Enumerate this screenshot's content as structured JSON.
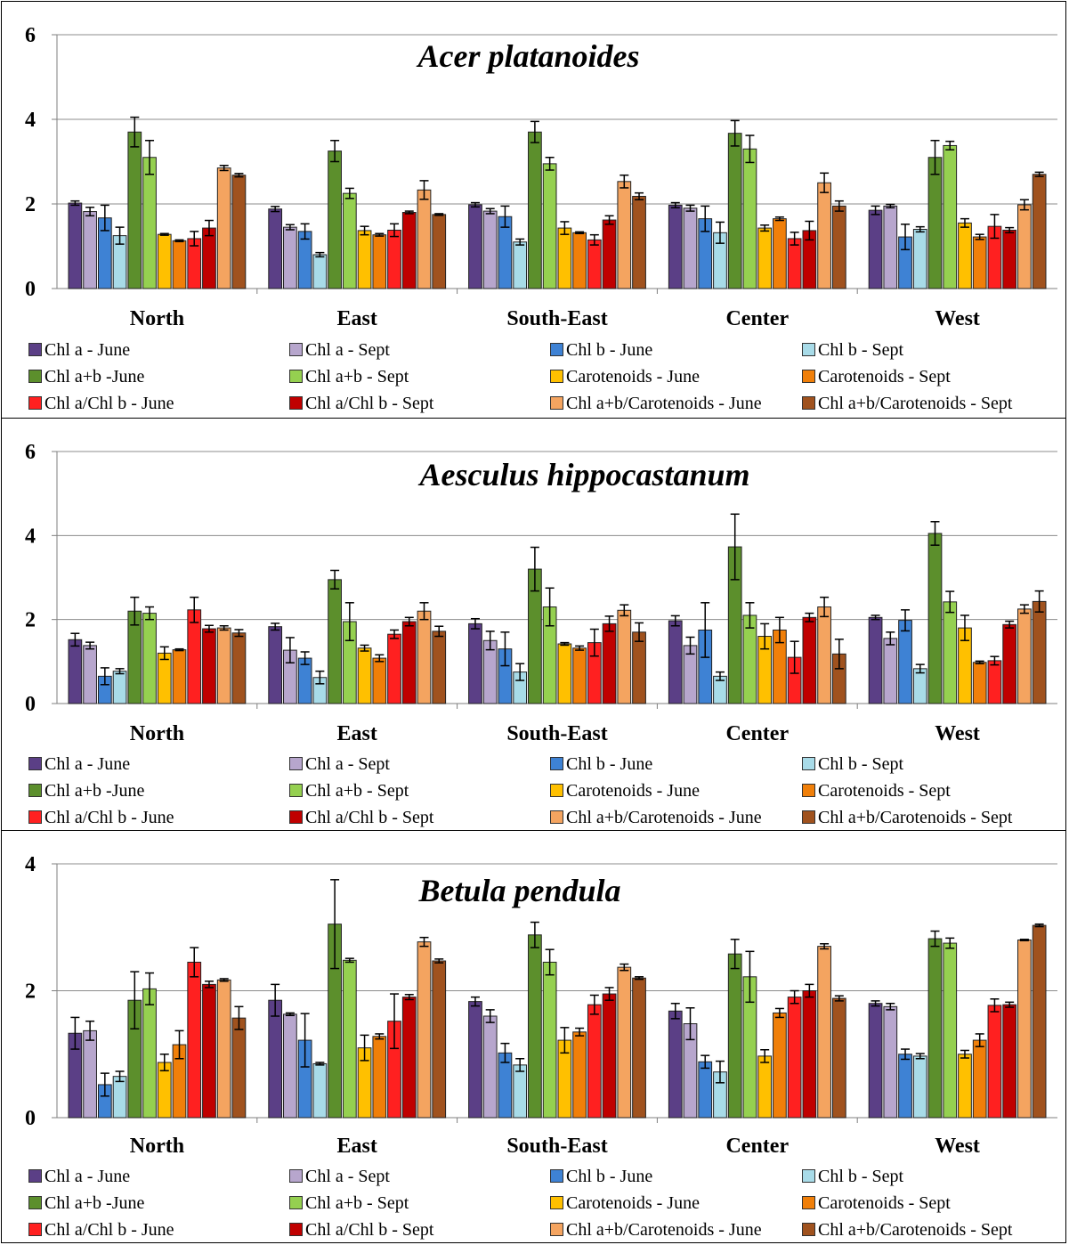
{
  "chart_data": [
    {
      "type": "bar",
      "title": "Acer platanoides",
      "categories": [
        "North",
        "East",
        "South-East",
        "Center",
        "West"
      ],
      "ylim": [
        0,
        6
      ],
      "yticks": [
        0,
        2,
        4,
        6
      ],
      "series": [
        {
          "name": "Chl a - June",
          "color": "#5b3f86",
          "values": [
            2.02,
            1.88,
            1.98,
            1.97,
            1.85
          ],
          "errors": [
            0.05,
            0.06,
            0.05,
            0.06,
            0.1
          ]
        },
        {
          "name": "Chl a - Sept",
          "color": "#b7a6cd",
          "values": [
            1.82,
            1.45,
            1.83,
            1.9,
            1.95
          ],
          "errors": [
            0.1,
            0.06,
            0.06,
            0.07,
            0.04
          ]
        },
        {
          "name": "Chl b - June",
          "color": "#3e82d4",
          "values": [
            1.67,
            1.35,
            1.7,
            1.65,
            1.22
          ],
          "errors": [
            0.3,
            0.18,
            0.25,
            0.3,
            0.3
          ]
        },
        {
          "name": "Chl b - Sept",
          "color": "#a8dbe8",
          "values": [
            1.25,
            0.8,
            1.1,
            1.32,
            1.4
          ],
          "errors": [
            0.2,
            0.05,
            0.07,
            0.25,
            0.06
          ]
        },
        {
          "name": "Chl a+b -June",
          "color": "#5c8f2c",
          "values": [
            3.7,
            3.25,
            3.7,
            3.67,
            3.1
          ],
          "errors": [
            0.35,
            0.25,
            0.25,
            0.3,
            0.4
          ]
        },
        {
          "name": "Chl a+b - Sept",
          "color": "#95d050",
          "values": [
            3.1,
            2.25,
            2.95,
            3.3,
            3.38
          ],
          "errors": [
            0.4,
            0.12,
            0.15,
            0.32,
            0.1
          ]
        },
        {
          "name": "Carotenoids - June",
          "color": "#ffc000",
          "values": [
            1.28,
            1.37,
            1.43,
            1.43,
            1.55
          ],
          "errors": [
            0.02,
            0.1,
            0.15,
            0.07,
            0.1
          ]
        },
        {
          "name": "Carotenoids - Sept",
          "color": "#f07f09",
          "values": [
            1.13,
            1.27,
            1.32,
            1.65,
            1.22
          ],
          "errors": [
            0.02,
            0.03,
            0.02,
            0.04,
            0.06
          ]
        },
        {
          "name": "Chl a/Chl b - June",
          "color": "#ff2020",
          "values": [
            1.18,
            1.38,
            1.15,
            1.18,
            1.47
          ],
          "errors": [
            0.17,
            0.15,
            0.12,
            0.15,
            0.28
          ]
        },
        {
          "name": "Chl a/Chl b - Sept",
          "color": "#c00000",
          "values": [
            1.43,
            1.8,
            1.62,
            1.37,
            1.38
          ],
          "errors": [
            0.18,
            0.03,
            0.1,
            0.22,
            0.06
          ]
        },
        {
          "name": "Chl a+b/Carotenoids - June",
          "color": "#f4a460",
          "values": [
            2.85,
            2.33,
            2.53,
            2.5,
            1.98
          ],
          "errors": [
            0.06,
            0.22,
            0.15,
            0.23,
            0.12
          ]
        },
        {
          "name": "Chl a+b/Carotenoids - Sept",
          "color": "#a0521e",
          "values": [
            2.68,
            1.75,
            2.18,
            1.95,
            2.7
          ],
          "errors": [
            0.04,
            0.02,
            0.08,
            0.12,
            0.05
          ]
        }
      ]
    },
    {
      "type": "bar",
      "title": "Aesculus hippocastanum",
      "categories": [
        "North",
        "East",
        "South-East",
        "Center",
        "West"
      ],
      "ylim": [
        0,
        6
      ],
      "yticks": [
        0,
        2,
        4,
        6
      ],
      "series": [
        {
          "name": "Chl a - June",
          "color": "#5b3f86",
          "values": [
            1.52,
            1.83,
            1.9,
            1.97,
            2.05
          ],
          "errors": [
            0.15,
            0.08,
            0.12,
            0.12,
            0.05
          ]
        },
        {
          "name": "Chl a - Sept",
          "color": "#b7a6cd",
          "values": [
            1.38,
            1.27,
            1.5,
            1.38,
            1.55
          ],
          "errors": [
            0.08,
            0.3,
            0.22,
            0.2,
            0.15
          ]
        },
        {
          "name": "Chl b - June",
          "color": "#3e82d4",
          "values": [
            0.65,
            1.08,
            1.3,
            1.75,
            1.98
          ],
          "errors": [
            0.2,
            0.15,
            0.4,
            0.65,
            0.25
          ]
        },
        {
          "name": "Chl b - Sept",
          "color": "#a8dbe8",
          "values": [
            0.77,
            0.62,
            0.75,
            0.65,
            0.83
          ],
          "errors": [
            0.06,
            0.15,
            0.2,
            0.1,
            0.1
          ]
        },
        {
          "name": "Chl a+b -June",
          "color": "#5c8f2c",
          "values": [
            2.2,
            2.95,
            3.2,
            3.73,
            4.05
          ],
          "errors": [
            0.33,
            0.22,
            0.52,
            0.78,
            0.28
          ]
        },
        {
          "name": "Chl a+b - Sept",
          "color": "#95d050",
          "values": [
            2.15,
            1.95,
            2.3,
            2.1,
            2.42
          ],
          "errors": [
            0.15,
            0.45,
            0.45,
            0.3,
            0.25
          ]
        },
        {
          "name": "Carotenoids - June",
          "color": "#ffc000",
          "values": [
            1.2,
            1.32,
            1.42,
            1.6,
            1.8
          ],
          "errors": [
            0.15,
            0.07,
            0.03,
            0.3,
            0.3
          ]
        },
        {
          "name": "Carotenoids - Sept",
          "color": "#f07f09",
          "values": [
            1.28,
            1.08,
            1.32,
            1.75,
            0.98
          ],
          "errors": [
            0.02,
            0.08,
            0.05,
            0.3,
            0.03
          ]
        },
        {
          "name": "Chl a/Chl b - June",
          "color": "#ff2020",
          "values": [
            2.23,
            1.65,
            1.45,
            1.1,
            1.02
          ],
          "errors": [
            0.3,
            0.1,
            0.32,
            0.38,
            0.1
          ]
        },
        {
          "name": "Chl a/Chl b - Sept",
          "color": "#c00000",
          "values": [
            1.78,
            1.95,
            1.9,
            2.05,
            1.88
          ],
          "errors": [
            0.08,
            0.1,
            0.18,
            0.1,
            0.08
          ]
        },
        {
          "name": "Chl a+b/Carotenoids - June",
          "color": "#f4a460",
          "values": [
            1.8,
            2.2,
            2.22,
            2.3,
            2.25
          ],
          "errors": [
            0.05,
            0.2,
            0.13,
            0.23,
            0.1
          ]
        },
        {
          "name": "Chl a+b/Carotenoids - Sept",
          "color": "#a0521e",
          "values": [
            1.68,
            1.72,
            1.7,
            1.18,
            2.43
          ],
          "errors": [
            0.08,
            0.12,
            0.22,
            0.35,
            0.25
          ]
        }
      ]
    },
    {
      "type": "bar",
      "title": "Betula pendula",
      "categories": [
        "North",
        "East",
        "South-East",
        "Center",
        "West"
      ],
      "ylim": [
        0,
        4
      ],
      "yticks": [
        0,
        2,
        4
      ],
      "series": [
        {
          "name": "Chl a - June",
          "color": "#5b3f86",
          "values": [
            1.33,
            1.85,
            1.83,
            1.68,
            1.8
          ],
          "errors": [
            0.25,
            0.25,
            0.07,
            0.12,
            0.04
          ]
        },
        {
          "name": "Chl a - Sept",
          "color": "#b7a6cd",
          "values": [
            1.37,
            1.63,
            1.6,
            1.48,
            1.75
          ],
          "errors": [
            0.15,
            0.02,
            0.1,
            0.25,
            0.05
          ]
        },
        {
          "name": "Chl b - June",
          "color": "#3e82d4",
          "values": [
            0.52,
            1.22,
            1.02,
            0.88,
            1.0
          ],
          "errors": [
            0.18,
            0.42,
            0.15,
            0.1,
            0.08
          ]
        },
        {
          "name": "Chl b - Sept",
          "color": "#a8dbe8",
          "values": [
            0.65,
            0.85,
            0.83,
            0.72,
            0.97
          ],
          "errors": [
            0.08,
            0.02,
            0.1,
            0.17,
            0.04
          ]
        },
        {
          "name": "Chl a+b -June",
          "color": "#5c8f2c",
          "values": [
            1.85,
            3.05,
            2.88,
            2.58,
            2.82
          ],
          "errors": [
            0.45,
            0.7,
            0.2,
            0.23,
            0.12
          ]
        },
        {
          "name": "Chl a+b - Sept",
          "color": "#95d050",
          "values": [
            2.03,
            2.48,
            2.45,
            2.22,
            2.75
          ],
          "errors": [
            0.25,
            0.03,
            0.2,
            0.4,
            0.08
          ]
        },
        {
          "name": "Carotenoids - June",
          "color": "#ffc000",
          "values": [
            0.87,
            1.1,
            1.22,
            0.97,
            1.0
          ],
          "errors": [
            0.13,
            0.2,
            0.2,
            0.1,
            0.06
          ]
        },
        {
          "name": "Carotenoids - Sept",
          "color": "#f07f09",
          "values": [
            1.15,
            1.28,
            1.35,
            1.65,
            1.22
          ],
          "errors": [
            0.22,
            0.04,
            0.06,
            0.07,
            0.1
          ]
        },
        {
          "name": "Chl a/Chl b - June",
          "color": "#ff2020",
          "values": [
            2.45,
            1.52,
            1.78,
            1.9,
            1.77
          ],
          "errors": [
            0.23,
            0.43,
            0.15,
            0.1,
            0.1
          ]
        },
        {
          "name": "Chl a/Chl b - Sept",
          "color": "#c00000",
          "values": [
            2.1,
            1.9,
            1.95,
            2.0,
            1.78
          ],
          "errors": [
            0.05,
            0.04,
            0.1,
            0.1,
            0.04
          ]
        },
        {
          "name": "Chl a+b/Carotenoids - June",
          "color": "#f4a460",
          "values": [
            2.17,
            2.77,
            2.37,
            2.7,
            2.8
          ],
          "errors": [
            0.02,
            0.07,
            0.05,
            0.04,
            0.01
          ]
        },
        {
          "name": "Chl a+b/Carotenoids - Sept",
          "color": "#a0521e",
          "values": [
            1.57,
            2.47,
            2.2,
            1.88,
            3.03
          ],
          "errors": [
            0.18,
            0.03,
            0.02,
            0.04,
            0.02
          ]
        }
      ]
    }
  ]
}
